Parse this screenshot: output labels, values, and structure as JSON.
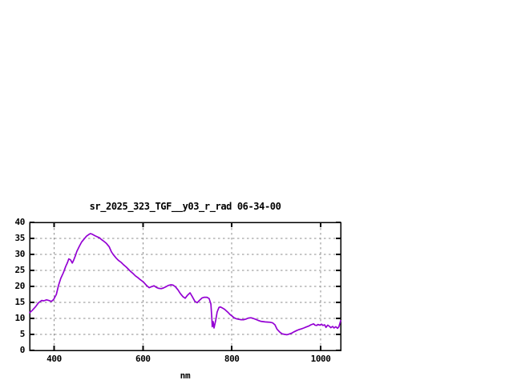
{
  "colors": {
    "background": "#ffffff",
    "frame": "#000000",
    "grid": "#8c8c8c",
    "text": "#000000",
    "line": "#9400d3"
  },
  "chart_data": {
    "type": "line",
    "title": "sr_2025_323_TGF__y03_r_rad 06-34-00",
    "xlabel": "nm",
    "ylabel": "",
    "xlim": [
      345,
      1045
    ],
    "ylim": [
      0,
      40
    ],
    "xticks": [
      400,
      600,
      800,
      1000
    ],
    "yticks": [
      0,
      5,
      10,
      15,
      20,
      25,
      30,
      35,
      40
    ],
    "grid": true,
    "legend": "none",
    "series": [
      {
        "color": "#9400d3",
        "x": [
          345,
          350,
          358,
          365,
          372,
          377,
          383,
          388,
          394,
          399,
          405,
          410,
          415,
          421,
          426,
          430,
          433,
          437,
          441,
          444,
          448,
          451,
          457,
          462,
          468,
          473,
          479,
          482,
          486,
          491,
          497,
          502,
          507,
          513,
          518,
          524,
          529,
          534,
          540,
          545,
          551,
          556,
          562,
          567,
          572,
          578,
          583,
          589,
          594,
          601,
          608,
          614,
          619,
          625,
          630,
          635,
          641,
          646,
          652,
          657,
          663,
          668,
          673,
          679,
          684,
          690,
          695,
          700,
          706,
          711,
          717,
          722,
          727,
          733,
          738,
          744,
          749,
          753,
          755,
          756,
          758,
          760,
          764,
          767,
          771,
          774,
          778,
          782,
          785,
          789,
          792,
          796,
          800,
          805,
          810,
          816,
          821,
          827,
          832,
          837,
          843,
          848,
          854,
          859,
          865,
          870,
          875,
          881,
          886,
          892,
          897,
          902,
          908,
          913,
          919,
          924,
          929,
          935,
          940,
          946,
          951,
          956,
          962,
          967,
          973,
          978,
          984,
          987,
          991,
          994,
          998,
          1002,
          1005,
          1009,
          1012,
          1016,
          1020,
          1023,
          1027,
          1030,
          1034,
          1038,
          1041,
          1045
        ],
        "y": [
          11.8,
          12.4,
          13.6,
          14.9,
          15.6,
          15.5,
          15.8,
          15.6,
          15.3,
          15.9,
          17.5,
          20.3,
          22.5,
          24.3,
          26.2,
          27.4,
          28.6,
          28.3,
          27.3,
          28.2,
          29.6,
          30.9,
          32.6,
          33.9,
          34.9,
          35.7,
          36.3,
          36.5,
          36.3,
          35.9,
          35.5,
          35.2,
          34.6,
          34.0,
          33.4,
          32.4,
          30.8,
          29.8,
          28.8,
          28.1,
          27.5,
          26.8,
          26.1,
          25.4,
          24.7,
          24.0,
          23.3,
          22.7,
          22.1,
          21.4,
          20.3,
          19.6,
          19.9,
          20.2,
          19.7,
          19.4,
          19.3,
          19.5,
          19.9,
          20.3,
          20.5,
          20.4,
          19.9,
          18.9,
          17.8,
          16.8,
          16.3,
          17.2,
          18.0,
          16.8,
          15.3,
          14.9,
          15.6,
          16.4,
          16.6,
          16.6,
          16.2,
          14.5,
          10.0,
          7.4,
          9.0,
          7.0,
          9.5,
          12.0,
          13.4,
          13.6,
          13.3,
          13.0,
          12.7,
          12.2,
          11.8,
          11.2,
          10.8,
          10.2,
          9.9,
          9.7,
          9.6,
          9.6,
          9.8,
          10.1,
          10.2,
          10.0,
          9.7,
          9.4,
          9.1,
          9.0,
          8.9,
          8.85,
          8.8,
          8.6,
          8.0,
          6.6,
          5.7,
          5.2,
          5.0,
          4.9,
          5.1,
          5.4,
          5.8,
          6.2,
          6.5,
          6.7,
          7.0,
          7.3,
          7.6,
          8.0,
          8.3,
          7.9,
          7.8,
          8.1,
          7.9,
          8.2,
          7.8,
          8.0,
          7.2,
          7.9,
          7.5,
          7.1,
          7.5,
          7.0,
          7.4,
          6.9,
          7.4,
          9.3
        ]
      }
    ]
  }
}
